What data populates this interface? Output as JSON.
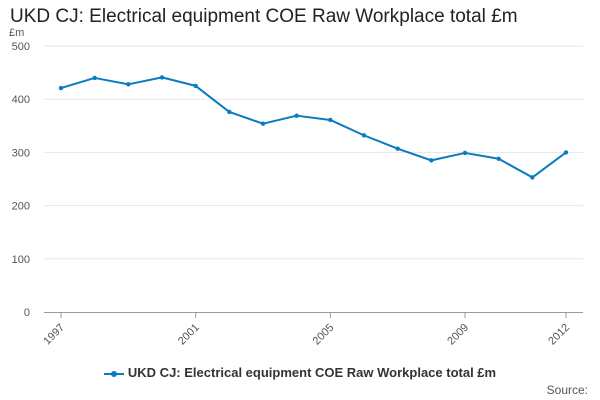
{
  "chart_data": {
    "type": "line",
    "title": "UKD CJ: Electrical equipment COE Raw Workplace total £m",
    "ylabel": "£m",
    "xlabel": "",
    "x": [
      1997,
      1998,
      1999,
      2000,
      2001,
      2002,
      2003,
      2004,
      2005,
      2006,
      2007,
      2008,
      2009,
      2010,
      2011,
      2012
    ],
    "x_tick_labels": [
      "1997",
      "2001",
      "2005",
      "2009",
      "2012"
    ],
    "y_ticks": [
      0,
      100,
      200,
      300,
      400,
      500
    ],
    "ylim": [
      0,
      500
    ],
    "grid": true,
    "legend_position": "bottom",
    "series": [
      {
        "name": "UKD CJ: Electrical equipment COE Raw Workplace total £m",
        "color": "#0a7bbf",
        "values": [
          421,
          440,
          428,
          441,
          425,
          376,
          354,
          369,
          361,
          332,
          307,
          285,
          299,
          288,
          253,
          300
        ]
      }
    ],
    "source": "Source:"
  }
}
